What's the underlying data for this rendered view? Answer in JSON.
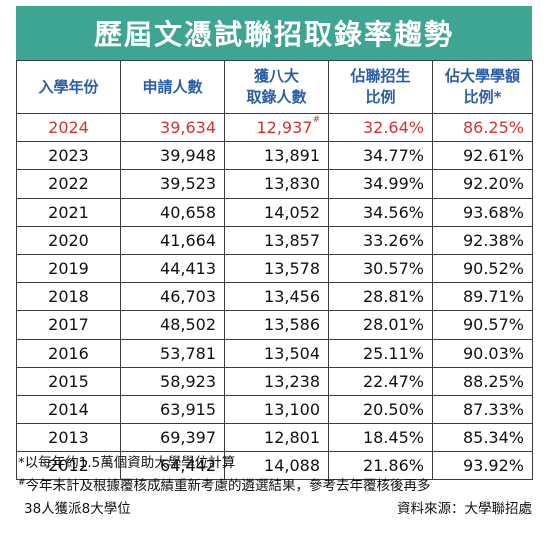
{
  "title": "歷屆文憑試聯招取錄率趨勢",
  "headers": {
    "col1": "入學年份",
    "col2": "申請人數",
    "col3_line1": "獲八大",
    "col3_line2": "取錄人數",
    "col4_line1": "佔聯招生",
    "col4_line2": "比例",
    "col5_line1": "佔大學學額",
    "col5_line2": "比例",
    "col5_mark": "*"
  },
  "colors": {
    "header_bg": "#3fa593",
    "header_text": "#2b5ea8",
    "highlight": "#d7322d"
  },
  "rows": [
    {
      "year": "2024",
      "applicants": "39,634",
      "admitted": "12,937",
      "admitted_mark": "#",
      "share_jupas": "32.64%",
      "share_places": "86.25%"
    },
    {
      "year": "2023",
      "applicants": "39,948",
      "admitted": "13,891",
      "share_jupas": "34.77%",
      "share_places": "92.61%"
    },
    {
      "year": "2022",
      "applicants": "39,523",
      "admitted": "13,830",
      "share_jupas": "34.99%",
      "share_places": "92.20%"
    },
    {
      "year": "2021",
      "applicants": "40,658",
      "admitted": "14,052",
      "share_jupas": "34.56%",
      "share_places": "93.68%"
    },
    {
      "year": "2020",
      "applicants": "41,664",
      "admitted": "13,857",
      "share_jupas": "33.26%",
      "share_places": "92.38%"
    },
    {
      "year": "2019",
      "applicants": "44,413",
      "admitted": "13,578",
      "share_jupas": "30.57%",
      "share_places": "90.52%"
    },
    {
      "year": "2018",
      "applicants": "46,703",
      "admitted": "13,456",
      "share_jupas": "28.81%",
      "share_places": "89.71%"
    },
    {
      "year": "2017",
      "applicants": "48,502",
      "admitted": "13,586",
      "share_jupas": "28.01%",
      "share_places": "90.57%"
    },
    {
      "year": "2016",
      "applicants": "53,781",
      "admitted": "13,504",
      "share_jupas": "25.11%",
      "share_places": "90.03%"
    },
    {
      "year": "2015",
      "applicants": "58,923",
      "admitted": "13,238",
      "share_jupas": "22.47%",
      "share_places": "88.25%"
    },
    {
      "year": "2014",
      "applicants": "63,915",
      "admitted": "13,100",
      "share_jupas": "20.50%",
      "share_places": "87.33%"
    },
    {
      "year": "2013",
      "applicants": "69,397",
      "admitted": "12,801",
      "share_jupas": "18.45%",
      "share_places": "85.34%"
    },
    {
      "year": "2012",
      "applicants": "64,442",
      "admitted": "14,088",
      "share_jupas": "21.86%",
      "share_places": "93.92%"
    }
  ],
  "notes": {
    "note1": "*以每年約1.5萬個資助大學學位計算",
    "note2_mark": "#",
    "note2": "今年未計及根據覆核成績重新考慮的遴選結果，參考去年覆核後再多",
    "note3": "38人獲派8大學位",
    "source": "資料來源：大學聯招處"
  }
}
